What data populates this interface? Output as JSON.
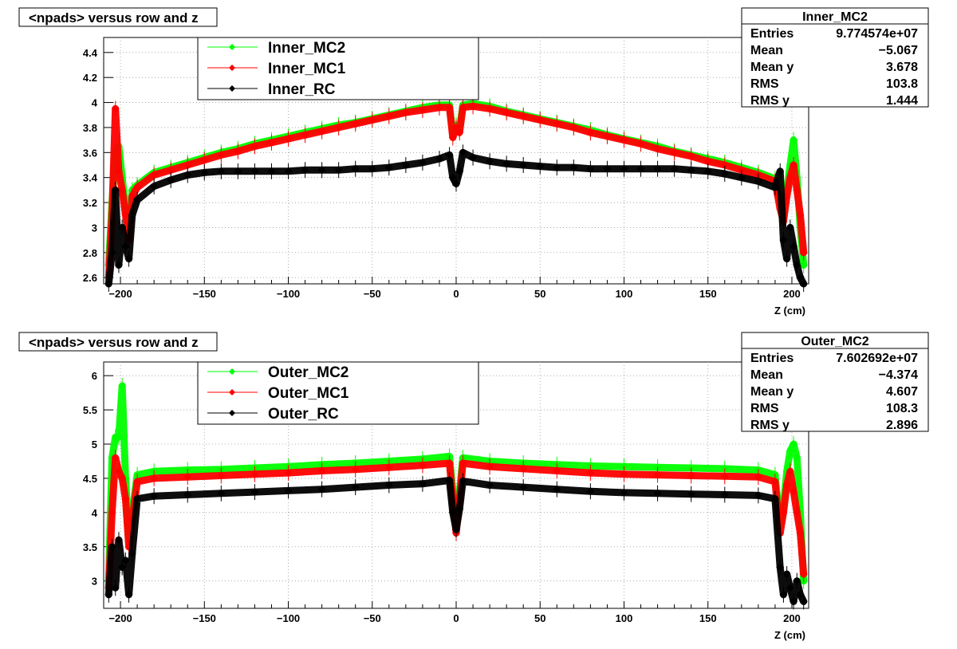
{
  "chart_data": [
    {
      "type": "scatter",
      "title": "<npads> versus row and z",
      "xlabel": "Z (cm)",
      "xlim": [
        -210,
        210
      ],
      "ylim": [
        2.55,
        4.52
      ],
      "x_ticks": [
        -200,
        -150,
        -100,
        -50,
        0,
        50,
        100,
        150,
        200
      ],
      "x_tick_labels": [
        "−200",
        "−150",
        "−100",
        "−50",
        "0",
        "50",
        "100",
        "150",
        "200"
      ],
      "y_ticks": [
        2.6,
        2.8,
        3,
        3.2,
        3.4,
        3.6,
        3.8,
        4,
        4.2,
        4.4
      ],
      "y_tick_labels": [
        "2.6",
        "2.8",
        "3",
        "3.2",
        "3.4",
        "3.6",
        "3.8",
        "4",
        "4.2",
        "4.4"
      ],
      "grid": true,
      "legend_position": "top-center",
      "series": [
        {
          "name": "Inner_MC2",
          "color": "#00ff00",
          "x": [
            -207,
            -205,
            -203,
            -201,
            -199,
            -197,
            -195,
            -193,
            -190,
            -180,
            -170,
            -160,
            -150,
            -140,
            -130,
            -120,
            -110,
            -100,
            -90,
            -80,
            -70,
            -60,
            -50,
            -40,
            -30,
            -20,
            -10,
            -4,
            -2,
            0,
            2,
            4,
            10,
            20,
            30,
            40,
            50,
            60,
            70,
            80,
            90,
            100,
            110,
            120,
            130,
            140,
            150,
            160,
            170,
            180,
            190,
            193,
            195,
            197,
            199,
            201,
            203,
            205,
            207
          ],
          "y": [
            2.7,
            3.2,
            3.6,
            3.65,
            3.4,
            3.15,
            3.0,
            3.3,
            3.34,
            3.44,
            3.48,
            3.52,
            3.56,
            3.6,
            3.63,
            3.67,
            3.7,
            3.73,
            3.76,
            3.79,
            3.82,
            3.84,
            3.87,
            3.9,
            3.93,
            3.96,
            3.98,
            3.98,
            3.75,
            3.82,
            3.78,
            3.98,
            3.99,
            3.97,
            3.93,
            3.9,
            3.87,
            3.84,
            3.81,
            3.78,
            3.74,
            3.71,
            3.68,
            3.65,
            3.61,
            3.58,
            3.55,
            3.52,
            3.48,
            3.44,
            3.39,
            3.2,
            3.1,
            3.3,
            3.5,
            3.7,
            3.4,
            3.0,
            2.7
          ]
        },
        {
          "name": "Inner_MC1",
          "color": "#ff0000",
          "x": [
            -207,
            -205,
            -203,
            -201,
            -199,
            -197,
            -195,
            -193,
            -190,
            -180,
            -170,
            -160,
            -150,
            -140,
            -130,
            -120,
            -110,
            -100,
            -90,
            -80,
            -70,
            -60,
            -50,
            -40,
            -30,
            -20,
            -10,
            -4,
            -2,
            0,
            2,
            4,
            10,
            20,
            30,
            40,
            50,
            60,
            70,
            80,
            90,
            100,
            110,
            120,
            130,
            140,
            150,
            160,
            170,
            180,
            190,
            193,
            195,
            197,
            199,
            201,
            203,
            205,
            207
          ],
          "y": [
            2.6,
            3.1,
            3.95,
            3.45,
            3.3,
            3.1,
            2.9,
            3.25,
            3.32,
            3.42,
            3.46,
            3.5,
            3.54,
            3.58,
            3.61,
            3.65,
            3.68,
            3.71,
            3.74,
            3.77,
            3.8,
            3.83,
            3.86,
            3.89,
            3.92,
            3.94,
            3.96,
            3.96,
            3.72,
            3.8,
            3.76,
            3.96,
            3.97,
            3.95,
            3.92,
            3.89,
            3.86,
            3.83,
            3.8,
            3.76,
            3.73,
            3.7,
            3.67,
            3.63,
            3.6,
            3.57,
            3.53,
            3.5,
            3.46,
            3.42,
            3.37,
            3.15,
            3.05,
            3.25,
            3.4,
            3.5,
            3.3,
            3.1,
            2.8
          ]
        },
        {
          "name": "Inner_RC",
          "color": "#000000",
          "x": [
            -207,
            -205,
            -203,
            -201,
            -199,
            -197,
            -195,
            -193,
            -190,
            -180,
            -170,
            -160,
            -150,
            -140,
            -130,
            -120,
            -110,
            -100,
            -90,
            -80,
            -70,
            -60,
            -50,
            -40,
            -30,
            -20,
            -10,
            -4,
            -2,
            0,
            2,
            4,
            10,
            20,
            30,
            40,
            50,
            60,
            70,
            80,
            90,
            100,
            110,
            120,
            130,
            140,
            150,
            160,
            170,
            180,
            190,
            193,
            195,
            197,
            199,
            201,
            203,
            205,
            207
          ],
          "y": [
            2.55,
            2.8,
            3.3,
            2.7,
            3.0,
            2.85,
            2.75,
            3.1,
            3.22,
            3.33,
            3.38,
            3.42,
            3.44,
            3.45,
            3.45,
            3.45,
            3.45,
            3.45,
            3.46,
            3.46,
            3.46,
            3.47,
            3.47,
            3.48,
            3.5,
            3.52,
            3.55,
            3.58,
            3.4,
            3.35,
            3.45,
            3.6,
            3.56,
            3.53,
            3.51,
            3.5,
            3.49,
            3.48,
            3.48,
            3.47,
            3.47,
            3.47,
            3.47,
            3.47,
            3.47,
            3.46,
            3.45,
            3.43,
            3.4,
            3.37,
            3.32,
            3.45,
            2.9,
            2.75,
            3.0,
            2.85,
            2.7,
            2.6,
            2.55
          ]
        }
      ],
      "stats": {
        "name": "Inner_MC2",
        "rows": [
          {
            "label": "Entries",
            "value": "9.774574e+07"
          },
          {
            "label": "Mean",
            "value": "−5.067"
          },
          {
            "label": "Mean y",
            "value": "3.678"
          },
          {
            "label": "RMS",
            "value": "103.8"
          },
          {
            "label": "RMS y",
            "value": "1.444"
          }
        ]
      }
    },
    {
      "type": "scatter",
      "title": "<npads> versus row and z",
      "xlabel": "Z (cm)",
      "xlim": [
        -210,
        210
      ],
      "ylim": [
        2.6,
        6.2
      ],
      "x_ticks": [
        -200,
        -150,
        -100,
        -50,
        0,
        50,
        100,
        150,
        200
      ],
      "x_tick_labels": [
        "−200",
        "−150",
        "−100",
        "−50",
        "0",
        "50",
        "100",
        "150",
        "200"
      ],
      "y_ticks": [
        3,
        3.5,
        4,
        4.5,
        5,
        5.5,
        6
      ],
      "y_tick_labels": [
        "3",
        "3.5",
        "4",
        "4.5",
        "5",
        "5.5",
        "6"
      ],
      "grid": true,
      "legend_position": "top-center",
      "series": [
        {
          "name": "Outer_MC2",
          "color": "#00ff00",
          "x": [
            -207,
            -205,
            -203,
            -201,
            -199,
            -197,
            -195,
            -193,
            -190,
            -180,
            -160,
            -140,
            -120,
            -100,
            -80,
            -60,
            -40,
            -20,
            -4,
            -2,
            0,
            2,
            4,
            20,
            40,
            60,
            80,
            100,
            120,
            140,
            160,
            180,
            190,
            193,
            195,
            197,
            199,
            201,
            203,
            205,
            207
          ],
          "y": [
            3.0,
            4.8,
            5.1,
            5.1,
            5.85,
            4.5,
            3.6,
            4.0,
            4.55,
            4.6,
            4.62,
            4.63,
            4.65,
            4.67,
            4.7,
            4.72,
            4.75,
            4.78,
            4.82,
            4.3,
            4.0,
            4.3,
            4.8,
            4.75,
            4.72,
            4.7,
            4.68,
            4.67,
            4.66,
            4.65,
            4.64,
            4.62,
            4.55,
            3.8,
            4.1,
            4.6,
            4.9,
            5.0,
            4.8,
            4.0,
            3.0
          ]
        },
        {
          "name": "Outer_MC1",
          "color": "#ff0000",
          "x": [
            -207,
            -205,
            -203,
            -201,
            -199,
            -197,
            -195,
            -193,
            -190,
            -180,
            -160,
            -140,
            -120,
            -100,
            -80,
            -60,
            -40,
            -20,
            -4,
            -2,
            0,
            2,
            4,
            20,
            40,
            60,
            80,
            100,
            120,
            140,
            160,
            180,
            190,
            193,
            195,
            197,
            199,
            201,
            203,
            205,
            207
          ],
          "y": [
            2.9,
            4.0,
            4.8,
            4.6,
            4.5,
            4.2,
            3.5,
            3.9,
            4.45,
            4.5,
            4.52,
            4.54,
            4.56,
            4.58,
            4.61,
            4.63,
            4.66,
            4.69,
            4.72,
            4.2,
            3.7,
            4.2,
            4.72,
            4.67,
            4.64,
            4.61,
            4.58,
            4.56,
            4.55,
            4.54,
            4.53,
            4.52,
            4.45,
            3.7,
            4.0,
            4.4,
            4.6,
            4.3,
            4.0,
            3.7,
            3.1
          ]
        },
        {
          "name": "Outer_RC",
          "color": "#000000",
          "x": [
            -207,
            -205,
            -203,
            -201,
            -199,
            -197,
            -195,
            -193,
            -190,
            -180,
            -160,
            -140,
            -120,
            -100,
            -80,
            -60,
            -40,
            -20,
            -4,
            -2,
            0,
            2,
            4,
            20,
            40,
            60,
            80,
            100,
            120,
            140,
            160,
            180,
            190,
            193,
            195,
            197,
            199,
            201,
            203,
            205,
            207
          ],
          "y": [
            2.8,
            3.5,
            2.9,
            3.6,
            3.2,
            3.3,
            2.8,
            3.4,
            4.2,
            4.24,
            4.26,
            4.28,
            4.3,
            4.32,
            4.34,
            4.37,
            4.4,
            4.42,
            4.47,
            4.0,
            3.75,
            4.05,
            4.46,
            4.4,
            4.37,
            4.34,
            4.31,
            4.29,
            4.28,
            4.27,
            4.26,
            4.25,
            4.2,
            3.2,
            2.8,
            3.1,
            2.9,
            2.7,
            3.0,
            2.8,
            2.7
          ]
        }
      ],
      "stats": {
        "name": "Outer_MC2",
        "rows": [
          {
            "label": "Entries",
            "value": "7.602692e+07"
          },
          {
            "label": "Mean",
            "value": "−4.374"
          },
          {
            "label": "Mean y",
            "value": "4.607"
          },
          {
            "label": "RMS",
            "value": "108.3"
          },
          {
            "label": "RMS y",
            "value": "2.896"
          }
        ]
      }
    }
  ]
}
